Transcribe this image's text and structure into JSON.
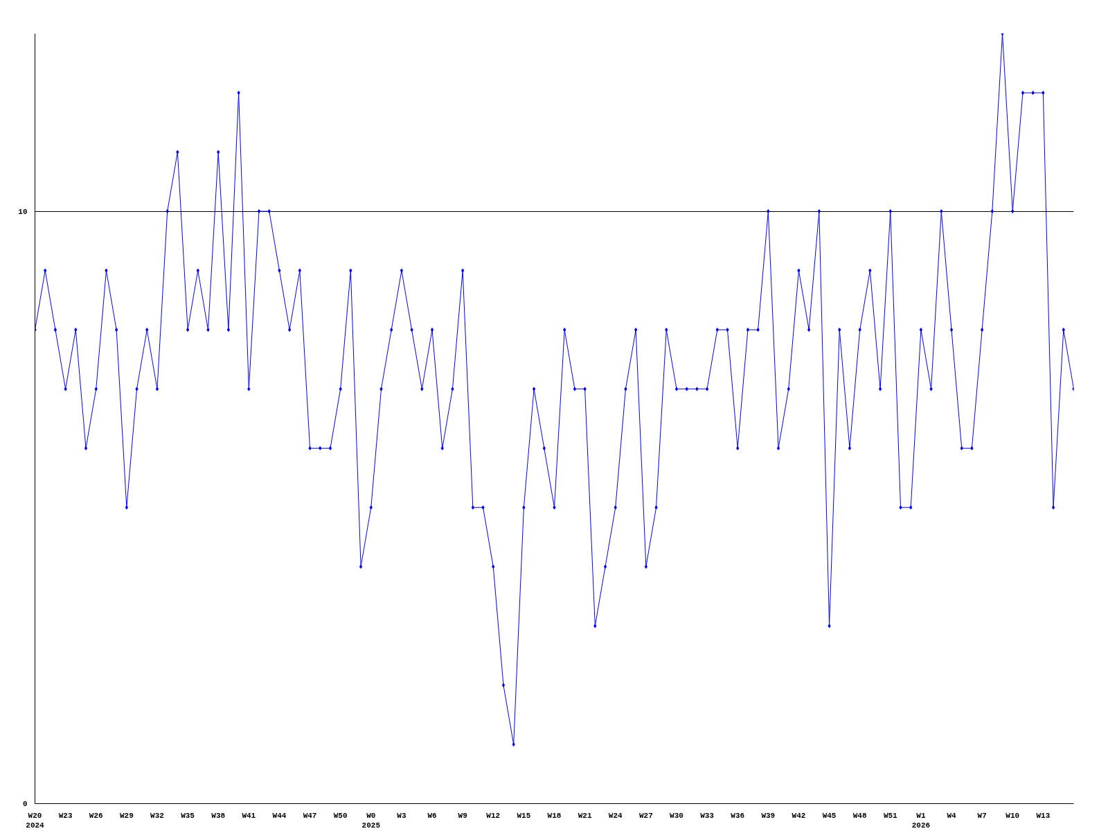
{
  "chart_data": {
    "type": "line",
    "marker": "diamond",
    "grid": "y",
    "categories": [
      "W20\n2024",
      null,
      null,
      "W23",
      null,
      null,
      "W26",
      null,
      null,
      "W29",
      null,
      null,
      "W32",
      null,
      null,
      "W35",
      null,
      null,
      "W38",
      null,
      null,
      "W41",
      null,
      null,
      "W44",
      null,
      null,
      "W47",
      null,
      null,
      "W50",
      null,
      null,
      "W0\n2025",
      null,
      null,
      "W3",
      null,
      null,
      "W6",
      null,
      null,
      "W9",
      null,
      null,
      "W12",
      null,
      null,
      "W15",
      null,
      null,
      "W18",
      null,
      null,
      "W21",
      null,
      null,
      "W24",
      null,
      null,
      "W27",
      null,
      null,
      "W30",
      null,
      null,
      "W33",
      null,
      null,
      "W36",
      null,
      null,
      "W39",
      null,
      null,
      "W42",
      null,
      null,
      "W45",
      null,
      null,
      "W48",
      null,
      null,
      "W51",
      null,
      null,
      "W1\n2026",
      null,
      null,
      "W4",
      null,
      null,
      "W7",
      null,
      null,
      "W10",
      null,
      null,
      "W13",
      null,
      null,
      null
    ],
    "series": [
      {
        "color": "#0000ff",
        "values": [
          8,
          9,
          8,
          7,
          8,
          6,
          7,
          9,
          8,
          5,
          7,
          8,
          7,
          10,
          11,
          8,
          9,
          8,
          11,
          8,
          12,
          7,
          10,
          10,
          9,
          8,
          9,
          6,
          6,
          6,
          7,
          9,
          4,
          5,
          7,
          8,
          9,
          8,
          7,
          8,
          6,
          7,
          9,
          5,
          5,
          4,
          2,
          1,
          5,
          7,
          6,
          5,
          8,
          7,
          7,
          3,
          4,
          5,
          7,
          8,
          4,
          5,
          8,
          7,
          7,
          7,
          7,
          8,
          8,
          6,
          8,
          8,
          10,
          6,
          7,
          9,
          8,
          10,
          3,
          8,
          6,
          8,
          9,
          7,
          10,
          5,
          5,
          8,
          7,
          10,
          8,
          6,
          6,
          8,
          10,
          13,
          10,
          12,
          12,
          12,
          5,
          8,
          7
        ]
      }
    ],
    "ylim": [
      0,
      13
    ],
    "yticks": [
      0,
      10
    ]
  }
}
